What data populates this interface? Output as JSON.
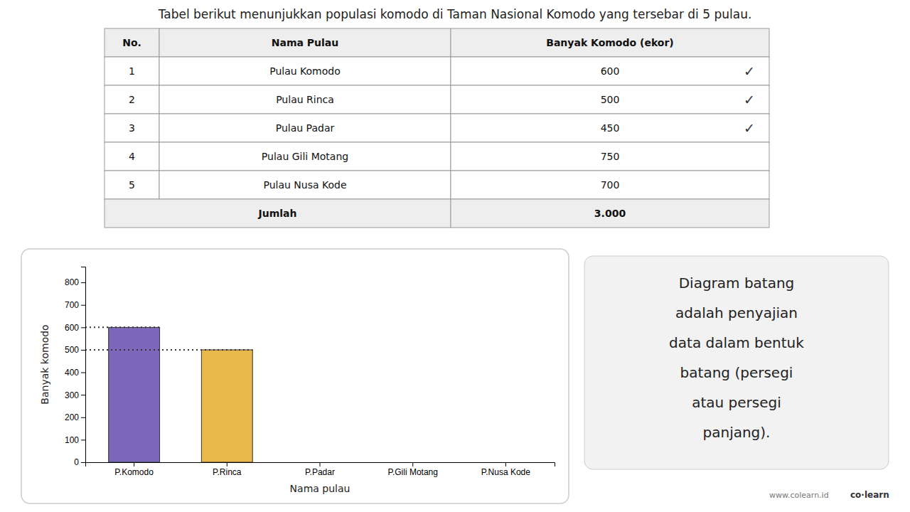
{
  "chart_data": [
    {
      "type": "table",
      "title": "Tabel berikut menunjukkan populasi komodo di Taman Nasional Komodo yang tersebar di 5 pulau.",
      "columns": [
        "No.",
        "Nama Pulau",
        "Banyak Komodo (ekor)"
      ],
      "rows": [
        [
          "1",
          "Pulau Komodo",
          "600"
        ],
        [
          "2",
          "Pulau Rinca",
          "500"
        ],
        [
          "3",
          "Pulau Padar",
          "450"
        ],
        [
          "4",
          "Pulau Gili Motang",
          "750"
        ],
        [
          "5",
          "Pulau Nusa Kode",
          "700"
        ]
      ],
      "row_marks": [
        "✓",
        "✓",
        "✓",
        null,
        null
      ],
      "footer": [
        "Jumlah",
        "3.000"
      ]
    },
    {
      "type": "bar",
      "categories": [
        "P.Komodo",
        "P.Rinca",
        "P.Padar",
        "P.Gili Motang",
        "P.Nusa Kode"
      ],
      "values": [
        600,
        500,
        0,
        0,
        0
      ],
      "colors": [
        "#7B68BB",
        "#E8B84B",
        "none",
        "none",
        "none"
      ],
      "hlines": [
        600,
        500
      ],
      "xlabel": "Nama pulau",
      "ylabel": "Banyak komodo",
      "ylim": [
        0,
        870
      ],
      "yticks": [
        0,
        100,
        200,
        300,
        400,
        500,
        600,
        700,
        800
      ],
      "annotations": [
        {
          "text": "Diagram batang\nadalah penyajian\ndata dalam bentuk\nbatang (persegi\natau persegi\npanjang)."
        },
        {
          "text": "www.colearn.id"
        },
        {
          "text": "co·learn"
        }
      ]
    }
  ]
}
